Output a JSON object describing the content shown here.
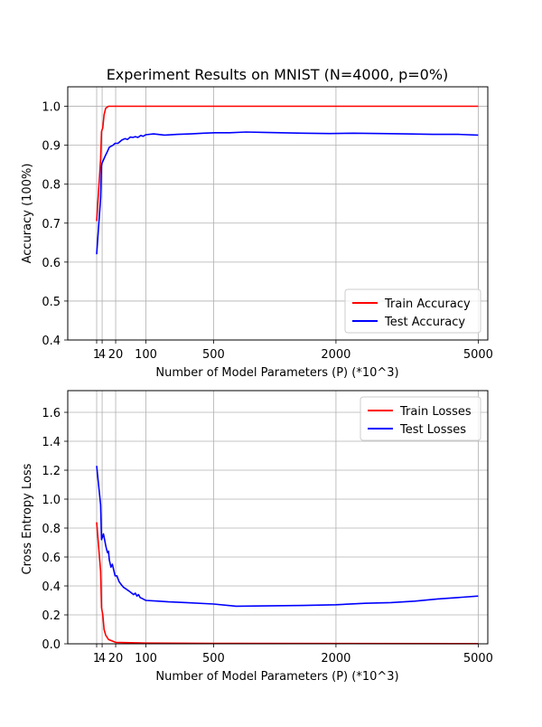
{
  "chart_data": [
    {
      "type": "line",
      "title": "Experiment Results on MNIST (N=4000, p=0%)",
      "xlabel": "Number of Model Parameters (P) (*10^3)",
      "ylabel": "Accuracy (100%)",
      "x_scale": "sqrt",
      "xlim": [
        0,
        5000
      ],
      "ylim": [
        0.4,
        1.05
      ],
      "xticks": [
        1,
        4,
        20,
        100,
        500,
        2000,
        5000
      ],
      "yticks": [
        0.4,
        0.5,
        0.6,
        0.7,
        0.8,
        0.9,
        1.0
      ],
      "grid": true,
      "legend_position": "lower-right",
      "series": [
        {
          "name": "Train Accuracy",
          "color": "#ff0000",
          "x": [
            1,
            3,
            3.6,
            4.5,
            5.5,
            7,
            10,
            100,
            5000
          ],
          "y": [
            0.705,
            0.865,
            0.935,
            0.945,
            0.978,
            0.995,
            1.0,
            1.0,
            1.0
          ]
        },
        {
          "name": "Test Accuracy",
          "color": "#0000ff",
          "x": [
            1,
            3,
            3.6,
            4,
            5,
            6.5,
            9,
            11,
            16,
            19,
            24,
            31,
            38,
            44,
            51,
            58,
            65,
            73,
            82,
            90,
            100,
            130,
            180,
            250,
            330,
            420,
            510,
            640,
            800,
            1000,
            1200,
            1500,
            1900,
            2300,
            2800,
            3300,
            3900,
            4500,
            5000
          ],
          "y": [
            0.62,
            0.765,
            0.847,
            0.855,
            0.862,
            0.872,
            0.885,
            0.895,
            0.9,
            0.905,
            0.905,
            0.913,
            0.917,
            0.915,
            0.921,
            0.92,
            0.922,
            0.92,
            0.925,
            0.923,
            0.927,
            0.929,
            0.926,
            0.928,
            0.929,
            0.931,
            0.932,
            0.932,
            0.934,
            0.933,
            0.932,
            0.931,
            0.93,
            0.931,
            0.93,
            0.929,
            0.928,
            0.928,
            0.926
          ]
        }
      ]
    },
    {
      "type": "line",
      "xlabel": "Number of Model Parameters (P) (*10^3)",
      "ylabel": "Cross Entropy Loss",
      "x_scale": "sqrt",
      "xlim": [
        0,
        5000
      ],
      "ylim": [
        0.0,
        1.75
      ],
      "xticks": [
        1,
        4,
        20,
        100,
        500,
        2000,
        5000
      ],
      "yticks": [
        0.0,
        0.2,
        0.4,
        0.6,
        0.8,
        1.0,
        1.2,
        1.4,
        1.6
      ],
      "grid": true,
      "legend_position": "upper-right",
      "series": [
        {
          "name": "Train Losses",
          "color": "#ff0000",
          "x": [
            1,
            3,
            3.6,
            4.5,
            5.5,
            7,
            10,
            20,
            100,
            500,
            5000
          ],
          "y": [
            0.84,
            0.5,
            0.25,
            0.2,
            0.1,
            0.06,
            0.03,
            0.01,
            0.005,
            0.003,
            0.001
          ]
        },
        {
          "name": "Test Losses",
          "color": "#0000ff",
          "x": [
            1,
            3,
            3.6,
            4.3,
            5,
            6,
            7,
            8,
            9,
            10,
            11,
            13,
            15,
            17,
            19,
            22,
            26,
            30,
            35,
            40,
            45,
            50,
            55,
            60,
            65,
            70,
            75,
            80,
            90,
            100,
            150,
            200,
            300,
            500,
            700,
            1000,
            1500,
            2000,
            2500,
            3000,
            3500,
            4000,
            4500,
            5000
          ],
          "y": [
            1.23,
            0.96,
            0.72,
            0.74,
            0.76,
            0.72,
            0.68,
            0.65,
            0.63,
            0.64,
            0.58,
            0.53,
            0.55,
            0.51,
            0.47,
            0.47,
            0.43,
            0.41,
            0.39,
            0.38,
            0.37,
            0.36,
            0.35,
            0.34,
            0.35,
            0.33,
            0.34,
            0.32,
            0.31,
            0.3,
            0.295,
            0.29,
            0.285,
            0.275,
            0.26,
            0.262,
            0.265,
            0.27,
            0.28,
            0.285,
            0.295,
            0.31,
            0.32,
            0.33
          ]
        }
      ]
    }
  ]
}
